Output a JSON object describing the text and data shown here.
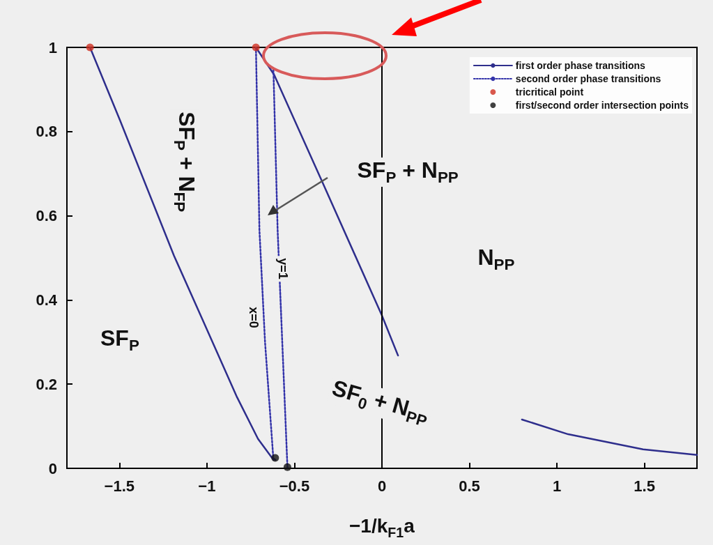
{
  "chart_data": {
    "type": "line",
    "xlabel": "−1/k$_{F1}$a",
    "xlim": [
      -1.8,
      1.8
    ],
    "xticks": [
      -1.5,
      -1,
      -0.5,
      0,
      0.5,
      1,
      1.5
    ],
    "ylim": [
      0,
      1
    ],
    "yticks": [
      0,
      0.2,
      0.4,
      0.6,
      0.8,
      1
    ],
    "grid": false,
    "legend": "top right",
    "series": [
      {
        "name": "first order phase transitions",
        "color": "#2e2e8c",
        "line_style": "solid",
        "marker": "none",
        "x": [
          -1.668,
          -1.496,
          -1.188,
          -1.028,
          -0.828,
          -0.708,
          -0.628,
          -0.608
        ],
        "values": [
          1,
          0.826,
          0.505,
          0.356,
          0.169,
          0.07,
          0.025,
          0.02
        ]
      },
      {
        "color": "#2e2e8c",
        "line_style": "solid",
        "marker": "none",
        "x": [
          -0.72,
          -0.616,
          -0.348,
          0,
          0.092
        ],
        "values": [
          1,
          0.935,
          0.687,
          0.363,
          0.268
        ]
      },
      {
        "color": "#2e2e8c",
        "line_style": "solid",
        "marker": "none",
        "x": [
          0.8,
          1.064,
          1.492,
          1.8
        ],
        "values": [
          0.116,
          0.081,
          0.045,
          0.032
        ]
      },
      {
        "name": "second order phase transitions",
        "color": "#3333aa",
        "line_style": "dotted",
        "marker": "none",
        "x": [
          -0.72,
          -0.7,
          -0.668,
          -0.62
        ],
        "values": [
          1,
          0.566,
          0.3,
          0.02
        ]
      },
      {
        "color": "#3333aa",
        "line_style": "dotted",
        "marker": "none",
        "x": [
          -0.62,
          -0.596,
          -0.54
        ],
        "values": [
          0.947,
          0.566,
          0.003
        ]
      },
      {
        "name": "tricritical point",
        "type": "scatter",
        "color": "#d03020",
        "marker": "circle",
        "x": [
          -1.668,
          -0.72
        ],
        "values": [
          1,
          1
        ]
      },
      {
        "name": "first/second order intersection points",
        "type": "scatter",
        "color": "#111111",
        "marker": "circle",
        "x": [
          -0.61,
          -0.54
        ],
        "values": [
          0.025,
          0.003
        ]
      }
    ],
    "ref_lines": [
      {
        "axis": "x",
        "value": 0,
        "color": "#000000"
      }
    ],
    "annotations": [
      "SF$_{P}$ + N$_{FP}$",
      "SF$_{P}$ + N$_{PP}$",
      "N$_{PP}$",
      "SF$_{P}$",
      "SF$_{0}$ + N$_{PP}$",
      "x=0",
      "y=1"
    ]
  }
}
